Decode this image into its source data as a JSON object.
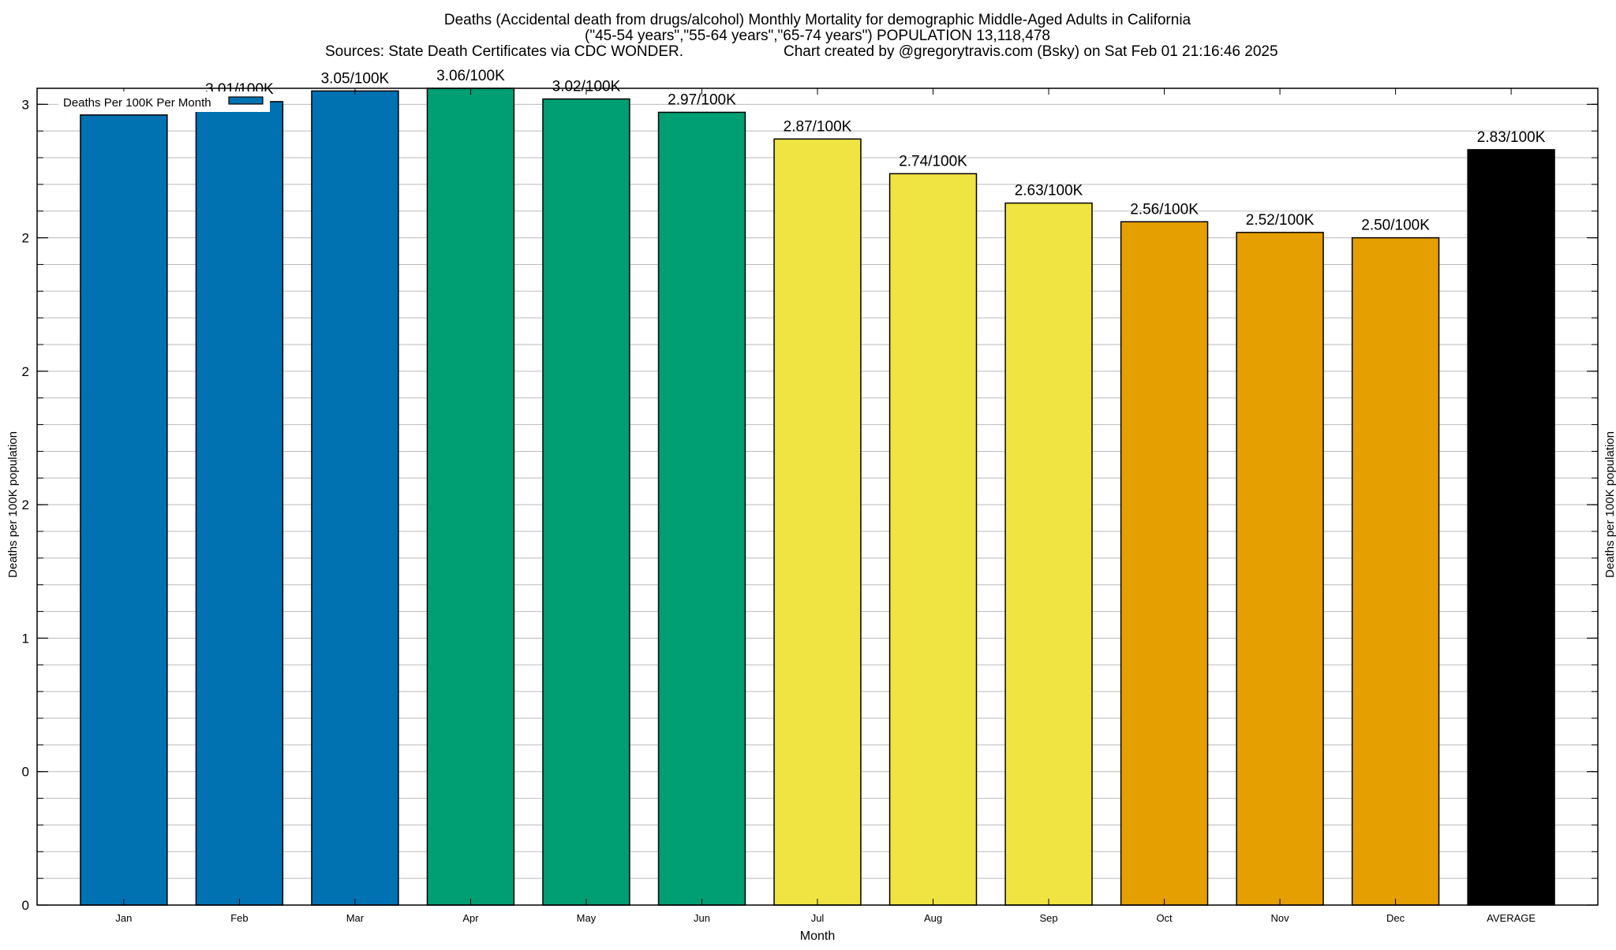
{
  "chart_data": {
    "type": "bar",
    "title_lines": [
      "Deaths (Accidental death from drugs/alcohol) Monthly Mortality for demographic Middle-Aged Adults in California",
      "(\"45-54 years\",\"55-64 years\",\"65-74 years\") POPULATION 13,118,478"
    ],
    "sources": "Sources: State Death Certificates via CDC WONDER.",
    "credit": "Chart created by @gregorytravis.com (Bsky) on Sat Feb 01 21:16:46 2025",
    "xlabel": "Month",
    "ylabel": "Deaths per 100K population",
    "ylabel_right": "Deaths per 100K population",
    "legend": {
      "label": "Deaths Per 100K Per Month",
      "placement": "top-left",
      "color": "#0072b2"
    },
    "categories": [
      "Jan",
      "Feb",
      "Mar",
      "Apr",
      "May",
      "Jun",
      "Jul",
      "Aug",
      "Sep",
      "Oct",
      "Nov",
      "Dec",
      "AVERAGE"
    ],
    "values": [
      2.96,
      3.01,
      3.05,
      3.06,
      3.02,
      2.97,
      2.87,
      2.74,
      2.63,
      2.56,
      2.52,
      2.5,
      2.83
    ],
    "data_labels": [
      "",
      "3.01/100K",
      "3.05/100K",
      "3.06/100K",
      "3.02/100K",
      "2.97/100K",
      "2.87/100K",
      "2.74/100K",
      "2.63/100K",
      "2.56/100K",
      "2.52/100K",
      "2.50/100K",
      "2.83/100K"
    ],
    "colors": [
      "#0072b2",
      "#0072b2",
      "#0072b2",
      "#009e73",
      "#009e73",
      "#009e73",
      "#f0e442",
      "#f0e442",
      "#f0e442",
      "#e69f00",
      "#e69f00",
      "#e69f00",
      "#000000"
    ],
    "ylim": [
      0,
      3.06
    ],
    "yticks": [
      0,
      0.5,
      1,
      1.5,
      2,
      2.5,
      3
    ],
    "ytick_labels": [
      "0",
      "0",
      "1",
      "2",
      "2",
      "2",
      "3"
    ],
    "grid": true,
    "grid_step": 0.1
  }
}
